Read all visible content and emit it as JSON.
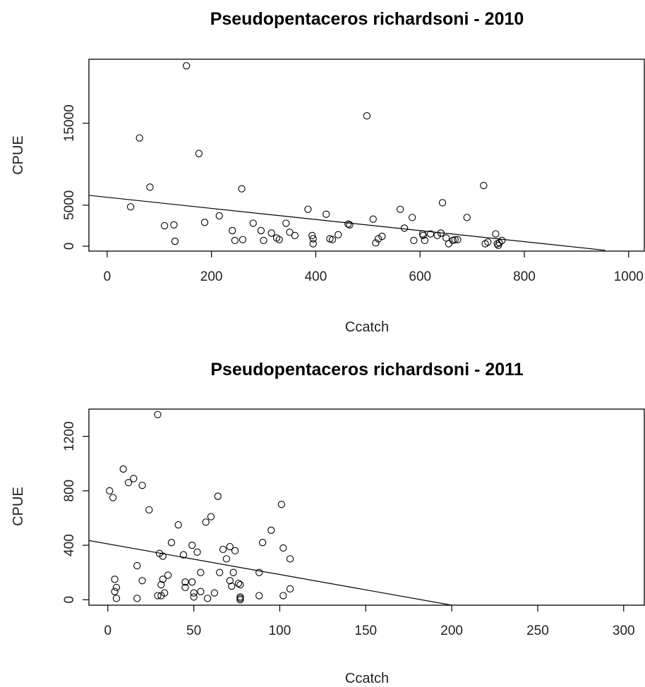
{
  "chart_data": [
    {
      "type": "scatter",
      "title": "Pseudopentaceros richardsoni - 2010",
      "xlabel": "Ccatch",
      "ylabel": "CPUE",
      "xlim": [
        -35,
        1030
      ],
      "ylim": [
        -600,
        22800
      ],
      "xticks": [
        0,
        200,
        400,
        600,
        800,
        1000
      ],
      "yticks": [
        0,
        5000,
        15000
      ],
      "grid": false,
      "fit_line": {
        "x": [
          -35,
          955
        ],
        "y": [
          6200,
          -500
        ]
      },
      "points": [
        [
          152,
          22000
        ],
        [
          62,
          13200
        ],
        [
          176,
          11300
        ],
        [
          82,
          7200
        ],
        [
          45,
          4800
        ],
        [
          110,
          2500
        ],
        [
          128,
          2600
        ],
        [
          130,
          600
        ],
        [
          187,
          2900
        ],
        [
          215,
          3700
        ],
        [
          240,
          1900
        ],
        [
          245,
          700
        ],
        [
          260,
          800
        ],
        [
          258,
          7000
        ],
        [
          280,
          2800
        ],
        [
          295,
          1900
        ],
        [
          300,
          700
        ],
        [
          315,
          1600
        ],
        [
          325,
          1000
        ],
        [
          330,
          800
        ],
        [
          343,
          2800
        ],
        [
          350,
          1700
        ],
        [
          360,
          1300
        ],
        [
          385,
          4500
        ],
        [
          393,
          1300
        ],
        [
          395,
          900
        ],
        [
          395,
          300
        ],
        [
          420,
          3900
        ],
        [
          427,
          900
        ],
        [
          432,
          800
        ],
        [
          443,
          1400
        ],
        [
          462,
          2700
        ],
        [
          465,
          2600
        ],
        [
          498,
          15900
        ],
        [
          510,
          3300
        ],
        [
          515,
          400
        ],
        [
          520,
          900
        ],
        [
          527,
          1200
        ],
        [
          562,
          4500
        ],
        [
          570,
          2200
        ],
        [
          585,
          3500
        ],
        [
          588,
          700
        ],
        [
          605,
          1500
        ],
        [
          606,
          1300
        ],
        [
          609,
          700
        ],
        [
          620,
          1500
        ],
        [
          633,
          1300
        ],
        [
          640,
          1600
        ],
        [
          643,
          5300
        ],
        [
          650,
          1000
        ],
        [
          655,
          300
        ],
        [
          663,
          700
        ],
        [
          667,
          800
        ],
        [
          672,
          800
        ],
        [
          690,
          3500
        ],
        [
          722,
          7400
        ],
        [
          725,
          300
        ],
        [
          730,
          500
        ],
        [
          745,
          1500
        ],
        [
          748,
          300
        ],
        [
          750,
          100
        ],
        [
          752,
          400
        ],
        [
          757,
          700
        ]
      ]
    },
    {
      "type": "scatter",
      "title": "Pseudopentaceros richardsoni - 2011",
      "xlabel": "Ccatch",
      "ylabel": "CPUE",
      "xlim": [
        -11,
        312
      ],
      "ylim": [
        -40,
        1400
      ],
      "xticks": [
        0,
        50,
        100,
        150,
        200,
        250,
        300
      ],
      "yticks": [
        0,
        400,
        800,
        1200
      ],
      "grid": false,
      "fit_line": {
        "x": [
          -11,
          200
        ],
        "y": [
          435,
          -40
        ]
      },
      "points": [
        [
          29,
          1360
        ],
        [
          9,
          960
        ],
        [
          12,
          860
        ],
        [
          15,
          890
        ],
        [
          20,
          840
        ],
        [
          1,
          800
        ],
        [
          3,
          750
        ],
        [
          24,
          660
        ],
        [
          64,
          760
        ],
        [
          60,
          610
        ],
        [
          57,
          570
        ],
        [
          101,
          700
        ],
        [
          41,
          550
        ],
        [
          95,
          510
        ],
        [
          37,
          420
        ],
        [
          90,
          420
        ],
        [
          49,
          400
        ],
        [
          102,
          380
        ],
        [
          71,
          390
        ],
        [
          67,
          370
        ],
        [
          74,
          360
        ],
        [
          30,
          340
        ],
        [
          44,
          330
        ],
        [
          32,
          320
        ],
        [
          69,
          300
        ],
        [
          106,
          300
        ],
        [
          17,
          250
        ],
        [
          52,
          350
        ],
        [
          88,
          200
        ],
        [
          73,
          200
        ],
        [
          65,
          200
        ],
        [
          54,
          200
        ],
        [
          35,
          180
        ],
        [
          32,
          150
        ],
        [
          4,
          150
        ],
        [
          20,
          140
        ],
        [
          49,
          130
        ],
        [
          71,
          140
        ],
        [
          45,
          130
        ],
        [
          76,
          120
        ],
        [
          77,
          110
        ],
        [
          31,
          110
        ],
        [
          72,
          100
        ],
        [
          45,
          90
        ],
        [
          5,
          90
        ],
        [
          106,
          80
        ],
        [
          4,
          60
        ],
        [
          54,
          60
        ],
        [
          50,
          50
        ],
        [
          33,
          50
        ],
        [
          62,
          50
        ],
        [
          31,
          30
        ],
        [
          29,
          30
        ],
        [
          88,
          30
        ],
        [
          102,
          30
        ],
        [
          50,
          20
        ],
        [
          5,
          10
        ],
        [
          17,
          10
        ],
        [
          58,
          10
        ],
        [
          77,
          10
        ],
        [
          77,
          20
        ],
        [
          77,
          0
        ]
      ]
    }
  ]
}
